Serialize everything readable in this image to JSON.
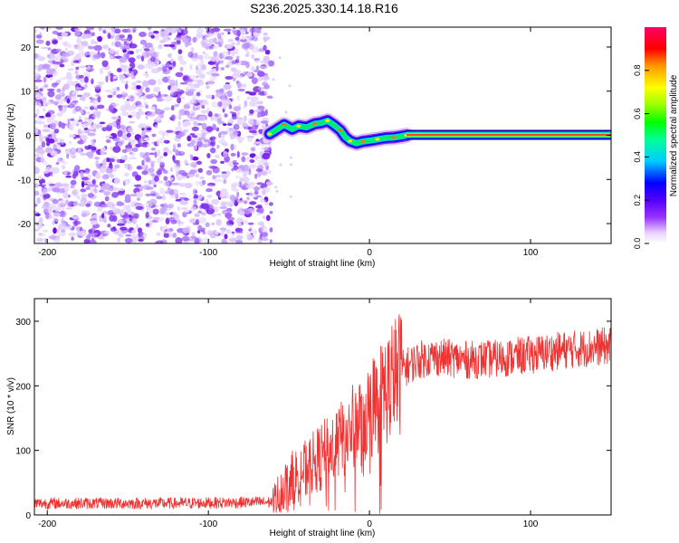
{
  "figure_title": "S236.2025.330.14.18.R16",
  "colors": {
    "snr_line": "#ee3333",
    "axis": "#000000",
    "background": "#ffffff"
  },
  "chart_data": [
    {
      "type": "heatmap",
      "title": "S236.2025.330.14.18.R16",
      "xlabel": "Height of straight line (km)",
      "ylabel": "Frequency (Hz)",
      "xlim": [
        -208,
        150
      ],
      "ylim": [
        -24.5,
        24.5
      ],
      "x_ticks": [
        -200,
        -100,
        0,
        100
      ],
      "y_ticks": [
        -20,
        -10,
        0,
        10,
        20
      ],
      "noise_region_x": [
        -208,
        -61
      ],
      "ridge_points": [
        {
          "x": -62,
          "y": 0.3
        },
        {
          "x": -58,
          "y": 1.2
        },
        {
          "x": -53,
          "y": 2.4
        },
        {
          "x": -48,
          "y": 1.4
        },
        {
          "x": -44,
          "y": 2.1
        },
        {
          "x": -39,
          "y": 1.8
        },
        {
          "x": -34,
          "y": 2.6
        },
        {
          "x": -30,
          "y": 2.8
        },
        {
          "x": -26,
          "y": 3.3
        },
        {
          "x": -22,
          "y": 2.3
        },
        {
          "x": -18,
          "y": 1.1
        },
        {
          "x": -15,
          "y": -0.4
        },
        {
          "x": -12,
          "y": -1.3
        },
        {
          "x": -8,
          "y": -1.8
        },
        {
          "x": -4,
          "y": -1.4
        },
        {
          "x": 0,
          "y": -1.2
        },
        {
          "x": 5,
          "y": -0.9
        },
        {
          "x": 10,
          "y": -0.6
        },
        {
          "x": 15,
          "y": -0.5
        },
        {
          "x": 20,
          "y": -0.2
        },
        {
          "x": 23,
          "y": 0
        }
      ],
      "carrier_line": {
        "x_start": 23,
        "x_end": 150,
        "y": 0.1
      },
      "colorbar": {
        "label": "Normalized spectral amplitude",
        "range": [
          0,
          1
        ],
        "ticks": [
          "0.0",
          "0.2",
          "0.4",
          "0.6",
          "0.8"
        ],
        "tick_values": [
          0,
          0.2,
          0.4,
          0.6,
          0.8
        ]
      }
    },
    {
      "type": "line",
      "xlabel": "Height of straight line (km)",
      "ylabel": "SNR (10 * v/v)",
      "xlim": [
        -208,
        150
      ],
      "ylim": [
        0,
        335
      ],
      "x_ticks": [
        -200,
        -100,
        0,
        100
      ],
      "y_ticks": [
        0,
        100,
        200,
        300
      ],
      "series": [
        {
          "name": "SNR",
          "trend_x": [
            -208,
            -120,
            -60,
            -55,
            -50,
            -40,
            -30,
            -20,
            -10,
            0,
            10,
            20,
            30,
            40,
            60,
            80,
            100,
            120,
            150
          ],
          "trend_y": [
            18,
            18,
            20,
            38,
            55,
            70,
            90,
            110,
            135,
            160,
            195,
            225,
            240,
            245,
            240,
            242,
            248,
            255,
            262
          ]
        }
      ]
    }
  ]
}
